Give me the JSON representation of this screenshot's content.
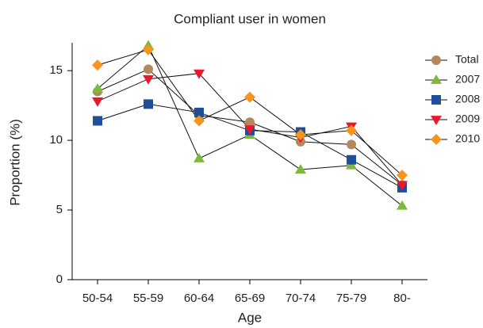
{
  "chart_data": {
    "type": "line",
    "title": "Compliant user in women",
    "x_label": "Age",
    "y_label": "Proportion (%)",
    "categories": [
      "50-54",
      "55-59",
      "60-64",
      "65-69",
      "70-74",
      "75-79",
      "80-"
    ],
    "series": [
      {
        "name": "Total",
        "color": "#b5875f",
        "marker": "circle",
        "values": [
          13.5,
          15.1,
          11.8,
          11.3,
          9.9,
          9.7,
          6.8
        ]
      },
      {
        "name": "2007",
        "color": "#7cba3c",
        "marker": "triangle-up",
        "values": [
          13.7,
          16.8,
          8.7,
          10.4,
          7.9,
          8.2,
          5.3
        ]
      },
      {
        "name": "2008",
        "color": "#1f4e9a",
        "marker": "square",
        "values": [
          11.4,
          12.6,
          12.0,
          10.7,
          10.6,
          8.6,
          6.6
        ]
      },
      {
        "name": "2009",
        "color": "#e8192c",
        "marker": "triangle-down",
        "values": [
          12.8,
          14.4,
          14.8,
          10.8,
          10.2,
          11.0,
          6.8
        ]
      },
      {
        "name": "2010",
        "color": "#f7941d",
        "marker": "diamond",
        "values": [
          15.4,
          16.5,
          11.4,
          13.1,
          10.4,
          10.7,
          7.5
        ]
      }
    ],
    "ylim": [
      0,
      17
    ],
    "yticks": [
      0,
      5,
      10,
      15
    ],
    "grid": false,
    "legend": "right"
  }
}
